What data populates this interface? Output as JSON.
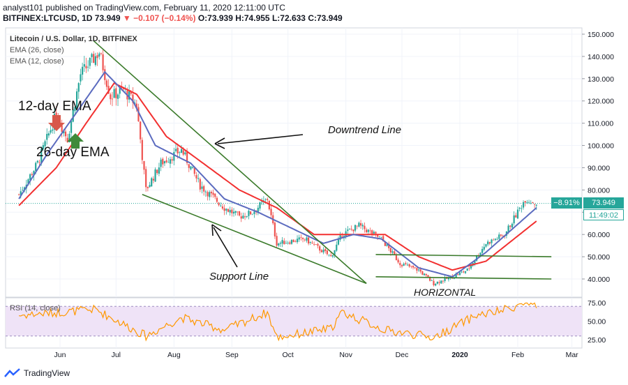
{
  "header": {
    "publish_line": "analyst101 published on TradingView.com, February 11, 2020 12:11:00 UTC",
    "symbol": "BITFINEX:LTCUSD, 1D",
    "last": "73.949",
    "change": "−0.107 (−0.14%)",
    "open": "O:73.939",
    "high": "H:74.955",
    "low": "L:72.633",
    "close": "C:73.949"
  },
  "legend": {
    "title": "Litecoin / U.S. Dollar, 1D, BITFINEX",
    "ema26": "EMA (26, close)",
    "ema12": "EMA (12, close)",
    "rsi": "RSI (14, close)"
  },
  "annotations": {
    "ema12": "12-day EMA",
    "ema26": "26-day EMA",
    "downtrend": "Downtrend Line",
    "support": "Support Line",
    "horizontal": "HORIZONTAL"
  },
  "price_tags": {
    "pct": "−8.91%",
    "last": "73.949",
    "timer": "11:49:02"
  },
  "brand": {
    "name": "TradingView"
  },
  "colors": {
    "up": "#26a69a",
    "down": "#ef5350",
    "ema12": "#5b6bbf",
    "ema26": "#f23030",
    "trendline": "#3a7a2a",
    "rsi": "#ff9800",
    "rsi_band": "#efe3f7"
  },
  "chart_data": {
    "type": "candlestick",
    "y_axis": {
      "range": [
        35,
        152
      ],
      "ticks": [
        "150.000",
        "140.000",
        "130.000",
        "120.000",
        "110.000",
        "100.000",
        "90.000",
        "80.000",
        "70.000",
        "60.000",
        "50.000",
        "40.000"
      ]
    },
    "x_axis": {
      "ticks": [
        "Jun",
        "Jul",
        "Aug",
        "Sep",
        "Oct",
        "Nov",
        "Dec",
        "2020",
        "Feb",
        "Mar"
      ]
    },
    "rsi_axis": {
      "range": [
        20,
        80
      ],
      "ticks": [
        "75.00",
        "50.00",
        "25.00"
      ],
      "bands": [
        30,
        70
      ]
    },
    "close_anchors": [
      {
        "date": "2019-05-10",
        "close": 78
      },
      {
        "date": "2019-05-20",
        "close": 92
      },
      {
        "date": "2019-05-30",
        "close": 114
      },
      {
        "date": "2019-06-05",
        "close": 103
      },
      {
        "date": "2019-06-12",
        "close": 132
      },
      {
        "date": "2019-06-22",
        "close": 142
      },
      {
        "date": "2019-06-28",
        "close": 122
      },
      {
        "date": "2019-07-05",
        "close": 125
      },
      {
        "date": "2019-07-12",
        "close": 118
      },
      {
        "date": "2019-07-17",
        "close": 80
      },
      {
        "date": "2019-07-25",
        "close": 92
      },
      {
        "date": "2019-08-05",
        "close": 98
      },
      {
        "date": "2019-08-15",
        "close": 82
      },
      {
        "date": "2019-08-28",
        "close": 72
      },
      {
        "date": "2019-09-05",
        "close": 68
      },
      {
        "date": "2019-09-12",
        "close": 70
      },
      {
        "date": "2019-09-20",
        "close": 76
      },
      {
        "date": "2019-09-25",
        "close": 56
      },
      {
        "date": "2019-10-10",
        "close": 58
      },
      {
        "date": "2019-10-24",
        "close": 50
      },
      {
        "date": "2019-10-30",
        "close": 60
      },
      {
        "date": "2019-11-08",
        "close": 64
      },
      {
        "date": "2019-11-20",
        "close": 58
      },
      {
        "date": "2019-11-30",
        "close": 47
      },
      {
        "date": "2019-12-10",
        "close": 44
      },
      {
        "date": "2019-12-18",
        "close": 38
      },
      {
        "date": "2019-12-28",
        "close": 41
      },
      {
        "date": "2020-01-05",
        "close": 44
      },
      {
        "date": "2020-01-15",
        "close": 56
      },
      {
        "date": "2020-01-25",
        "close": 60
      },
      {
        "date": "2020-02-05",
        "close": 76
      },
      {
        "date": "2020-02-11",
        "close": 73.949
      }
    ],
    "ema12_anchors": [
      {
        "date": "2019-05-10",
        "value": 76
      },
      {
        "date": "2019-05-25",
        "value": 96
      },
      {
        "date": "2019-06-10",
        "value": 115
      },
      {
        "date": "2019-06-25",
        "value": 133
      },
      {
        "date": "2019-07-10",
        "value": 120
      },
      {
        "date": "2019-07-22",
        "value": 100
      },
      {
        "date": "2019-08-10",
        "value": 92
      },
      {
        "date": "2019-08-28",
        "value": 76
      },
      {
        "date": "2019-09-15",
        "value": 70
      },
      {
        "date": "2019-09-30",
        "value": 64
      },
      {
        "date": "2019-10-20",
        "value": 56
      },
      {
        "date": "2019-11-05",
        "value": 60
      },
      {
        "date": "2019-11-20",
        "value": 58
      },
      {
        "date": "2019-12-10",
        "value": 45
      },
      {
        "date": "2019-12-28",
        "value": 41
      },
      {
        "date": "2020-01-15",
        "value": 52
      },
      {
        "date": "2020-02-11",
        "value": 72
      }
    ],
    "ema26_anchors": [
      {
        "date": "2019-05-10",
        "value": 73
      },
      {
        "date": "2019-05-30",
        "value": 90
      },
      {
        "date": "2019-06-15",
        "value": 110
      },
      {
        "date": "2019-06-30",
        "value": 128
      },
      {
        "date": "2019-07-12",
        "value": 123
      },
      {
        "date": "2019-07-28",
        "value": 104
      },
      {
        "date": "2019-08-15",
        "value": 93
      },
      {
        "date": "2019-09-05",
        "value": 80
      },
      {
        "date": "2019-09-25",
        "value": 72
      },
      {
        "date": "2019-10-15",
        "value": 60
      },
      {
        "date": "2019-11-05",
        "value": 60
      },
      {
        "date": "2019-11-22",
        "value": 60
      },
      {
        "date": "2019-12-10",
        "value": 50
      },
      {
        "date": "2019-12-28",
        "value": 44
      },
      {
        "date": "2020-01-15",
        "value": 48
      },
      {
        "date": "2020-02-11",
        "value": 66
      }
    ],
    "rsi_anchors": [
      {
        "date": "2019-05-10",
        "value": 58
      },
      {
        "date": "2019-06-01",
        "value": 62
      },
      {
        "date": "2019-06-20",
        "value": 66
      },
      {
        "date": "2019-07-17",
        "value": 30
      },
      {
        "date": "2019-08-05",
        "value": 55
      },
      {
        "date": "2019-08-28",
        "value": 38
      },
      {
        "date": "2019-09-20",
        "value": 62
      },
      {
        "date": "2019-09-25",
        "value": 28
      },
      {
        "date": "2019-10-24",
        "value": 40
      },
      {
        "date": "2019-10-30",
        "value": 62
      },
      {
        "date": "2019-11-22",
        "value": 38
      },
      {
        "date": "2019-12-18",
        "value": 28
      },
      {
        "date": "2020-01-10",
        "value": 58
      },
      {
        "date": "2020-01-20",
        "value": 62
      },
      {
        "date": "2020-02-05",
        "value": 74
      },
      {
        "date": "2020-02-11",
        "value": 68
      }
    ],
    "trendlines": [
      {
        "name": "downtrend",
        "from": {
          "date": "2019-06-19",
          "value": 147
        },
        "to": {
          "date": "2019-11-12",
          "value": 38
        }
      },
      {
        "name": "support",
        "from": {
          "date": "2019-07-15",
          "value": 78
        },
        "to": {
          "date": "2019-11-12",
          "value": 38
        }
      },
      {
        "name": "horizontal-upper",
        "from": {
          "date": "2019-11-17",
          "value": 51
        },
        "to": {
          "date": "2020-02-19",
          "value": 50
        }
      },
      {
        "name": "horizontal-lower",
        "from": {
          "date": "2019-11-17",
          "value": 41
        },
        "to": {
          "date": "2020-02-19",
          "value": 40
        }
      }
    ],
    "last_price": 73.949
  }
}
